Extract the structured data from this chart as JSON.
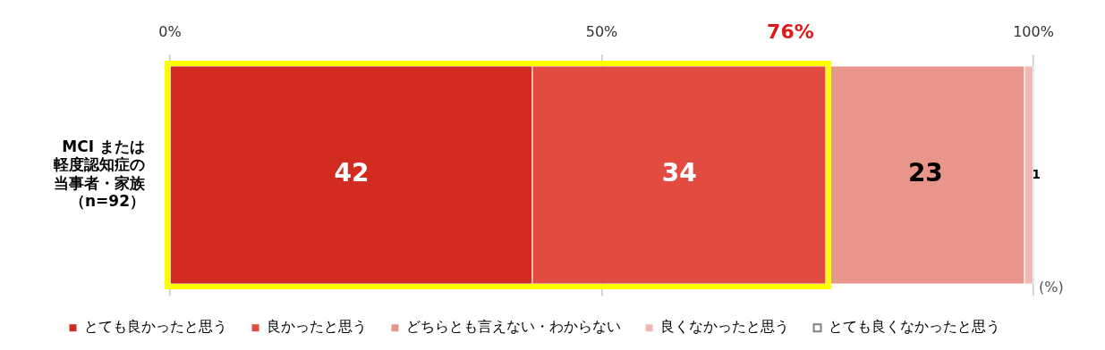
{
  "chart_data": {
    "type": "bar",
    "orientation": "horizontal",
    "stacked": true,
    "categories": [
      "MCI または軽度認知症の当事者・家族（n=92）"
    ],
    "series": [
      {
        "name": "とても良かったと思う",
        "color": "#d22b1f",
        "values": [
          42
        ],
        "value_labels": [
          "42"
        ]
      },
      {
        "name": "良かったと思う",
        "color": "#e24b3f",
        "values": [
          34
        ],
        "value_labels": [
          "34"
        ]
      },
      {
        "name": "どちらとも言えない・わからない",
        "color": "#e8958b",
        "values": [
          23
        ],
        "value_labels": [
          "23"
        ]
      },
      {
        "name": "良くなかったと思う",
        "color": "#f2b8b3",
        "values": [
          1
        ],
        "value_labels": [
          "1"
        ]
      },
      {
        "name": "とても良くなかったと思う",
        "color": "#7f7f7f",
        "values": [
          0
        ],
        "value_labels": [
          null
        ]
      }
    ],
    "xlim": [
      0,
      100
    ],
    "xticks": [
      {
        "value": 0,
        "label": "0%"
      },
      {
        "value": 50,
        "label": "50%"
      },
      {
        "value": 100,
        "label": "100%"
      }
    ],
    "grid": "x",
    "legend": "bottom",
    "annotations": [
      "(%)",
      "76%"
    ]
  }
}
